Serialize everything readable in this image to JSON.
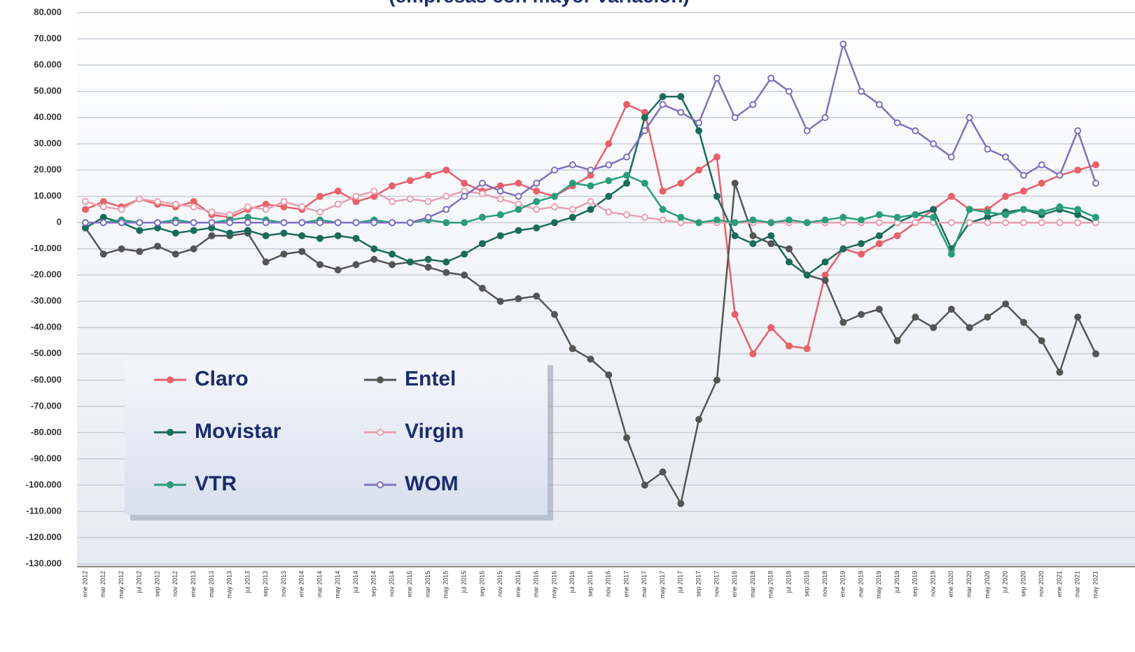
{
  "chart_data": {
    "type": "line",
    "title": "(empresas con mayor variación)",
    "categories": [
      "ene 2012",
      "mar 2012",
      "may 2012",
      "jul 2012",
      "sep 2012",
      "nov 2012",
      "ene 2013",
      "mar 2013",
      "may 2013",
      "jul 2013",
      "sep 2013",
      "nov 2013",
      "ene 2014",
      "mar 2014",
      "may 2014",
      "jul 2014",
      "sep 2014",
      "nov 2014",
      "ene 2015",
      "mar 2015",
      "may 2015",
      "jul 2015",
      "sep 2015",
      "nov 2015",
      "ene 2016",
      "mar 2016",
      "may 2016",
      "jul 2016",
      "sep 2016",
      "nov 2016",
      "ene 2017",
      "mar 2017",
      "may 2017",
      "jul 2017",
      "sep 2017",
      "nov 2017",
      "ene 2018",
      "mar 2018",
      "may 2018",
      "jul 2018",
      "sep 2018",
      "nov 2018",
      "ene 2019",
      "mar 2019",
      "may 2019",
      "jul 2019",
      "sep 2019",
      "nov 2019",
      "ene 2020",
      "mar 2020",
      "may 2020",
      "jul 2020",
      "sep 2020",
      "nov 2020",
      "ene 2021",
      "mar 2021",
      "may 2021"
    ],
    "series": [
      {
        "name": "Claro",
        "color": "#e8606a",
        "values": [
          5000,
          8000,
          6000,
          9000,
          7000,
          6000,
          8000,
          3000,
          2000,
          5000,
          7000,
          6000,
          5000,
          10000,
          12000,
          8000,
          10000,
          14000,
          16000,
          18000,
          20000,
          15000,
          12000,
          14000,
          15000,
          12000,
          10000,
          14000,
          18000,
          30000,
          45000,
          42000,
          12000,
          15000,
          20000,
          25000,
          -35000,
          -50000,
          -40000,
          -47000,
          -48000,
          -20000,
          -10000,
          -12000,
          -8000,
          -5000,
          0,
          5000,
          10000,
          5000,
          5000,
          10000,
          12000,
          15000,
          18000,
          20000,
          22000
        ]
      },
      {
        "name": "Entel",
        "color": "#555555",
        "values": [
          -2000,
          -12000,
          -10000,
          -11000,
          -9000,
          -12000,
          -10000,
          -5000,
          -5000,
          -4000,
          -15000,
          -12000,
          -11000,
          -16000,
          -18000,
          -16000,
          -14000,
          -16000,
          -15000,
          -17000,
          -19000,
          -20000,
          -25000,
          -30000,
          -29000,
          -28000,
          -35000,
          -48000,
          -52000,
          -58000,
          -82000,
          -100000,
          -95000,
          -107000,
          -75000,
          -60000,
          15000,
          -5000,
          -8000,
          -10000,
          -20000,
          -22000,
          -38000,
          -35000,
          -33000,
          -45000,
          -36000,
          -40000,
          -33000,
          -40000,
          -36000,
          -31000,
          -38000,
          -45000,
          -57000,
          -36000,
          -50000
        ]
      },
      {
        "name": "Movistar",
        "color": "#1a6b5a",
        "values": [
          -2000,
          2000,
          0,
          -3000,
          -2000,
          -4000,
          -3000,
          -2000,
          -4000,
          -3000,
          -5000,
          -4000,
          -5000,
          -6000,
          -5000,
          -6000,
          -10000,
          -12000,
          -15000,
          -14000,
          -15000,
          -12000,
          -8000,
          -5000,
          -3000,
          -2000,
          0,
          2000,
          5000,
          10000,
          15000,
          40000,
          48000,
          48000,
          35000,
          10000,
          -5000,
          -8000,
          -5000,
          -15000,
          -20000,
          -15000,
          -10000,
          -8000,
          -5000,
          0,
          3000,
          5000,
          -10000,
          0,
          2000,
          4000,
          5000,
          3000,
          5000,
          3000,
          0
        ]
      },
      {
        "name": "Virgin",
        "color": "#e8a0b0",
        "values": [
          8000,
          6000,
          5000,
          9000,
          8000,
          7000,
          6000,
          4000,
          3000,
          6000,
          5000,
          8000,
          6000,
          4000,
          7000,
          10000,
          12000,
          8000,
          9000,
          8000,
          10000,
          12000,
          11000,
          9000,
          7000,
          5000,
          6000,
          5000,
          8000,
          4000,
          3000,
          2000,
          1000,
          0,
          0,
          0,
          0,
          0,
          0,
          0,
          0,
          0,
          0,
          0,
          0,
          0,
          0,
          0,
          0,
          0,
          0,
          0,
          0,
          0,
          0,
          0,
          0
        ]
      },
      {
        "name": "VTR",
        "color": "#2a9d7a",
        "values": [
          0,
          0,
          1000,
          0,
          0,
          1000,
          0,
          0,
          1000,
          2000,
          1000,
          0,
          0,
          1000,
          0,
          0,
          1000,
          0,
          0,
          1000,
          0,
          0,
          2000,
          3000,
          5000,
          8000,
          10000,
          15000,
          14000,
          16000,
          18000,
          15000,
          5000,
          2000,
          0,
          1000,
          0,
          1000,
          0,
          1000,
          0,
          1000,
          2000,
          1000,
          3000,
          2000,
          3000,
          2000,
          -12000,
          5000,
          4000,
          3000,
          5000,
          4000,
          6000,
          5000,
          2000
        ]
      },
      {
        "name": "WOM",
        "color": "#8070c0",
        "values": [
          0,
          0,
          0,
          0,
          0,
          0,
          0,
          0,
          0,
          0,
          0,
          0,
          0,
          0,
          0,
          0,
          0,
          0,
          0,
          2000,
          5000,
          10000,
          15000,
          12000,
          10000,
          15000,
          20000,
          22000,
          20000,
          22000,
          25000,
          35000,
          45000,
          42000,
          38000,
          55000,
          40000,
          45000,
          55000,
          50000,
          35000,
          40000,
          68000,
          50000,
          45000,
          38000,
          35000,
          30000,
          25000,
          40000,
          28000,
          25000,
          18000,
          22000,
          18000,
          35000,
          15000
        ]
      }
    ],
    "ylim": [
      -130000,
      80000
    ],
    "yticks": [
      {
        "value": -130000,
        "label": "-130.000"
      },
      {
        "value": -120000,
        "label": "-120.000"
      },
      {
        "value": -110000,
        "label": "-110.000"
      },
      {
        "value": -100000,
        "label": "-100.000"
      },
      {
        "value": -90000,
        "label": "-90.000"
      },
      {
        "value": -80000,
        "label": "-80.000"
      },
      {
        "value": -70000,
        "label": "-70.000"
      },
      {
        "value": -60000,
        "label": "-60.000"
      },
      {
        "value": -50000,
        "label": "-50.000"
      },
      {
        "value": -40000,
        "label": "-40.000"
      },
      {
        "value": -30000,
        "label": "-30.000"
      },
      {
        "value": -20000,
        "label": "-20.000"
      },
      {
        "value": -10000,
        "label": "-10.000"
      },
      0,
      {
        "value": 10000,
        "label": "10.000"
      },
      {
        "value": 20000,
        "label": "20.000"
      },
      {
        "value": 30000,
        "label": "30.000"
      },
      {
        "value": 40000,
        "label": "40.000"
      },
      {
        "value": 50000,
        "label": "50.000"
      },
      {
        "value": 60000,
        "label": "60.000"
      },
      {
        "value": 70000,
        "label": "70.000"
      },
      {
        "value": 80000,
        "label": "80.000"
      }
    ],
    "grid": true
  }
}
